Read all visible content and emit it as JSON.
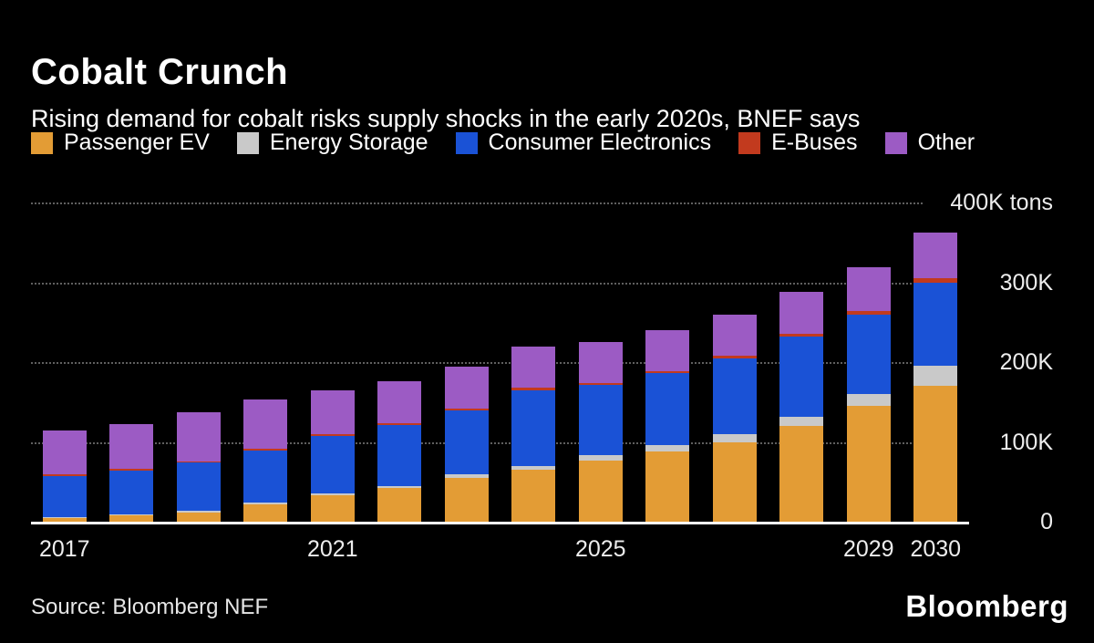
{
  "header": {
    "title": "Cobalt Crunch",
    "subtitle": "Rising demand for cobalt risks supply shocks in the early 2020s, BNEF says"
  },
  "source": "Source: Bloomberg NEF",
  "logo": "Bloomberg",
  "colors": {
    "background": "#000000",
    "gridline": "#5F5F5F",
    "baseline": "#FFFFFF",
    "axis_text": "#EDEDED"
  },
  "chart_data": {
    "type": "bar",
    "stacked": true,
    "title": "Cobalt Crunch",
    "subtitle": "Rising demand for cobalt risks supply shocks in the early 2020s, BNEF says",
    "values_unit": "thousand tons (K tons)",
    "x": [
      2017,
      2018,
      2019,
      2020,
      2021,
      2022,
      2023,
      2024,
      2025,
      2026,
      2027,
      2028,
      2029,
      2030
    ],
    "x_ticks": [
      {
        "index": 0,
        "label": "2017"
      },
      {
        "index": 4,
        "label": "2021"
      },
      {
        "index": 8,
        "label": "2025"
      },
      {
        "index": 12,
        "label": "2029"
      },
      {
        "index": 13,
        "label": "2030"
      }
    ],
    "ylim": [
      0,
      400
    ],
    "y_ticks": [
      {
        "value": 400,
        "label": "400K tons"
      },
      {
        "value": 300,
        "label": "300K"
      },
      {
        "value": 200,
        "label": "200K"
      },
      {
        "value": 100,
        "label": "100K"
      },
      {
        "value": 0,
        "label": "0"
      }
    ],
    "grid": "horizontal-dotted",
    "legend_position": "top",
    "series": [
      {
        "name": "Passenger EV",
        "color": "#E39C35",
        "values": [
          5,
          8,
          12,
          22,
          33,
          42,
          55,
          65,
          77,
          88,
          100,
          120,
          145,
          170
        ]
      },
      {
        "name": "Energy Storage",
        "color": "#C9C9C9",
        "values": [
          1,
          1,
          2,
          2,
          3,
          3,
          4,
          5,
          6,
          8,
          10,
          12,
          15,
          25
        ]
      },
      {
        "name": "Consumer Electronics",
        "color": "#1A52D6",
        "values": [
          51,
          55,
          60,
          65,
          72,
          76,
          80,
          95,
          88,
          90,
          95,
          100,
          100,
          105
        ]
      },
      {
        "name": "E-Buses",
        "color": "#C23A1E",
        "values": [
          2,
          2,
          2,
          2,
          2,
          2,
          3,
          3,
          3,
          3,
          3,
          4,
          4,
          5
        ]
      },
      {
        "name": "Other",
        "color": "#9C5BC4",
        "values": [
          55,
          56,
          61,
          62,
          55,
          53,
          52,
          51,
          51,
          51,
          52,
          52,
          55,
          57
        ]
      }
    ]
  }
}
